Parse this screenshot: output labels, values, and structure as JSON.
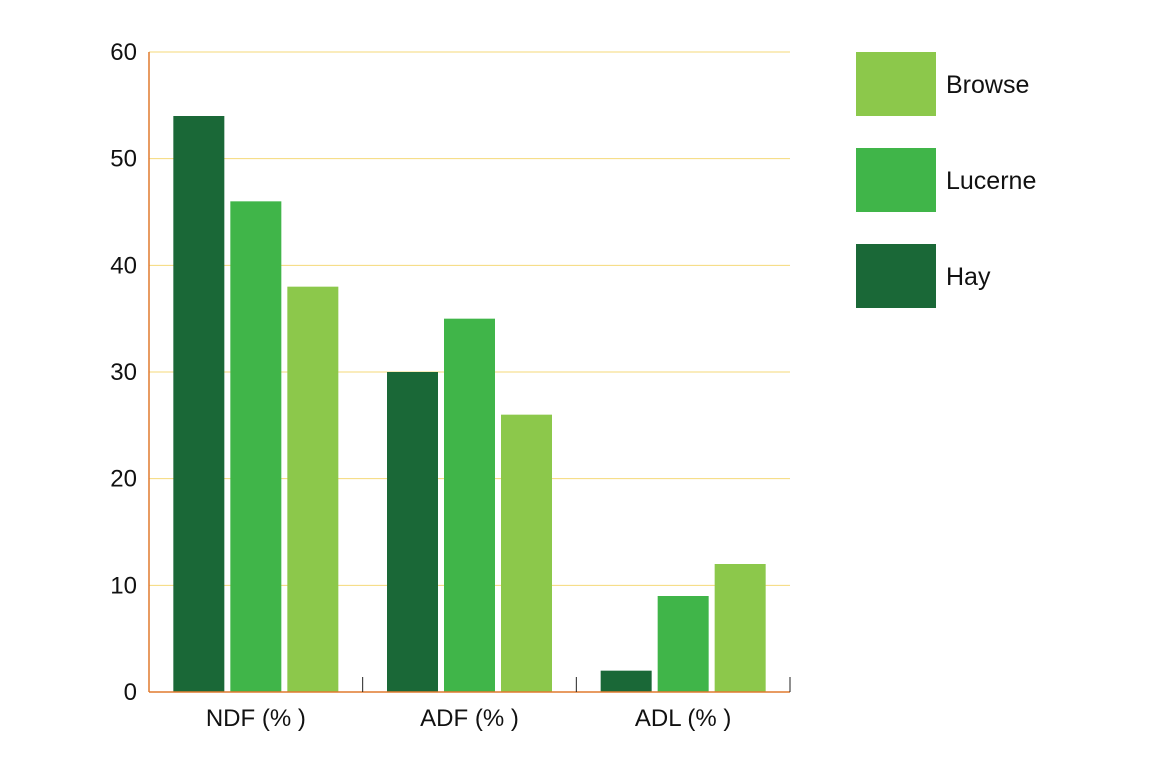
{
  "chart_data": {
    "type": "bar",
    "title": "",
    "xlabel": "",
    "ylabel": "",
    "categories": [
      "NDF (% )",
      "ADF (% )",
      "ADL (% )"
    ],
    "series": [
      {
        "name": "Hay",
        "values": [
          54,
          30,
          2
        ],
        "color": "#1a6837"
      },
      {
        "name": "Lucerne",
        "values": [
          46,
          35,
          9
        ],
        "color": "#40b549"
      },
      {
        "name": "Browse",
        "values": [
          38,
          26,
          12
        ],
        "color": "#8cc84b"
      }
    ],
    "ylim": [
      0,
      60
    ],
    "yticks": [
      0,
      10,
      20,
      30,
      40,
      50,
      60
    ],
    "grid": true,
    "grid_color": "#f5d97a",
    "axis_color": "#e07a2e",
    "legend_order": [
      "Browse",
      "Lucerne",
      "Hay"
    ],
    "legend_position": "right"
  }
}
